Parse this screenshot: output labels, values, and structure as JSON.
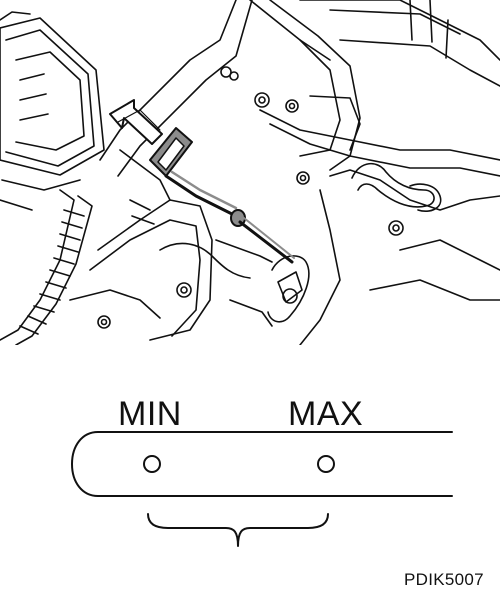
{
  "diagram": {
    "labels": {
      "min": "MIN",
      "max": "MAX"
    },
    "reference_code": "PDIK5007",
    "icons": {
      "arrow": "pull-out-arrow-icon",
      "dipstick": "dipstick-icon"
    },
    "colors": {
      "line": "#111111",
      "dipstick_fill": "#8c8c8c",
      "background": "#ffffff"
    }
  }
}
